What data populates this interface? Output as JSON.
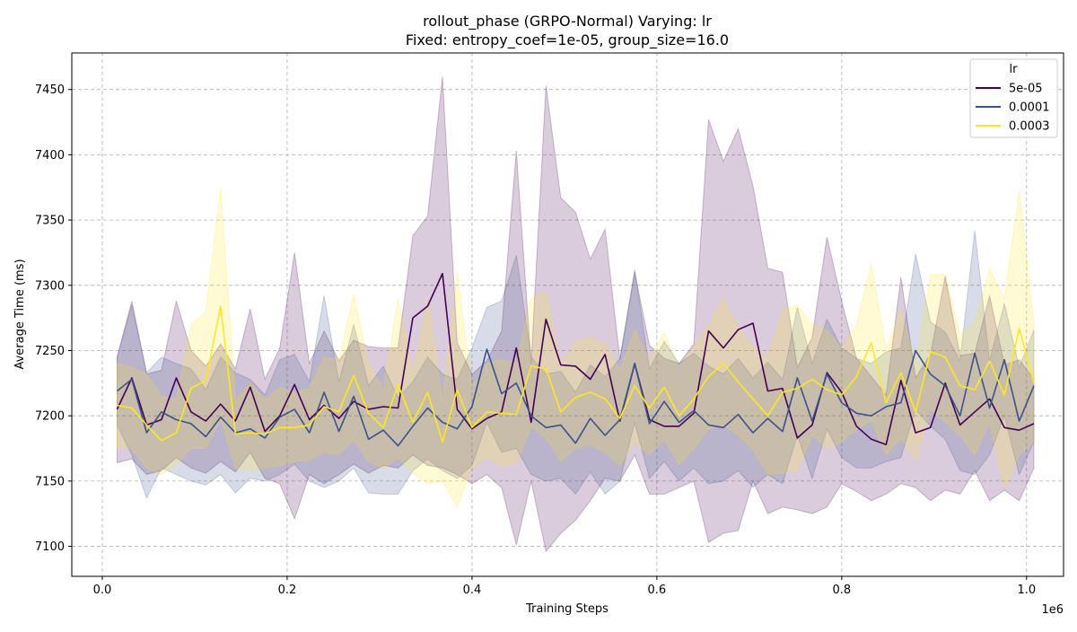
{
  "chart_data": {
    "type": "line",
    "title_line1": "rollout_phase (GRPO-Normal) Varying: lr",
    "title_line2": "Fixed: entropy_coef=1e-05, group_size=16.0",
    "xlabel": "Training Steps",
    "ylabel": "Average Time (ms)",
    "x_offset_label": "1e6",
    "x_unit": "1e6 steps",
    "xlim": [
      -0.033,
      1.04
    ],
    "ylim": [
      7077,
      7478
    ],
    "x_ticks": [
      0.0,
      0.2,
      0.4,
      0.6,
      0.8,
      1.0
    ],
    "x_tick_labels": [
      "0.0",
      "0.2",
      "0.4",
      "0.6",
      "0.8",
      "1.0"
    ],
    "y_ticks": [
      7100,
      7150,
      7200,
      7250,
      7300,
      7350,
      7400,
      7450
    ],
    "y_tick_labels": [
      "7100",
      "7150",
      "7200",
      "7250",
      "7300",
      "7350",
      "7400",
      "7450"
    ],
    "grid": true,
    "legend_title": "lr",
    "legend_position": "top-right",
    "x": [
      0.016,
      0.032,
      0.048,
      0.064,
      0.08,
      0.096,
      0.112,
      0.128,
      0.144,
      0.16,
      0.176,
      0.192,
      0.208,
      0.224,
      0.24,
      0.256,
      0.272,
      0.288,
      0.304,
      0.32,
      0.336,
      0.352,
      0.368,
      0.384,
      0.4,
      0.416,
      0.432,
      0.448,
      0.464,
      0.48,
      0.496,
      0.512,
      0.528,
      0.544,
      0.56,
      0.576,
      0.592,
      0.608,
      0.624,
      0.64,
      0.656,
      0.672,
      0.688,
      0.704,
      0.72,
      0.736,
      0.752,
      0.768,
      0.784,
      0.8,
      0.816,
      0.832,
      0.848,
      0.864,
      0.88,
      0.896,
      0.912,
      0.928,
      0.944,
      0.96,
      0.976,
      0.992,
      1.008
    ],
    "series": [
      {
        "name": "5e-05",
        "color": "#440154",
        "values": [
          7205,
          7229,
          7193,
          7197,
          7229,
          7203,
          7196,
          7209,
          7196,
          7222,
          7188,
          7200,
          7224,
          7197,
          7208,
          7198,
          7211,
          7205,
          7207,
          7206,
          7275,
          7284,
          7309,
          7205,
          7190,
          7198,
          7203,
          7252,
          7195,
          7274,
          7239,
          7238,
          7228,
          7247,
          7196,
          7240,
          7197,
          7192,
          7192,
          7202,
          7265,
          7252,
          7266,
          7271,
          7219,
          7221,
          7183,
          7193,
          7233,
          7218,
          7192,
          7182,
          7178,
          7227,
          7187,
          7191,
          7225,
          7193,
          7203,
          7213,
          7191,
          7189,
          7194
        ],
        "lower": [
          7164,
          7167,
          7155,
          7158,
          7168,
          7160,
          7156,
          7165,
          7157,
          7172,
          7152,
          7148,
          7121,
          7155,
          7148,
          7155,
          7163,
          7156,
          7162,
          7160,
          7170,
          7162,
          7160,
          7155,
          7148,
          7155,
          7145,
          7101,
          7150,
          7096,
          7110,
          7120,
          7135,
          7152,
          7150,
          7170,
          7140,
          7140,
          7145,
          7150,
          7103,
          7110,
          7112,
          7150,
          7125,
          7130,
          7128,
          7125,
          7130,
          7148,
          7142,
          7135,
          7140,
          7148,
          7145,
          7135,
          7143,
          7140,
          7158,
          7135,
          7143,
          7135,
          7160
        ],
        "upper": [
          7245,
          7288,
          7232,
          7235,
          7288,
          7250,
          7238,
          7255,
          7236,
          7282,
          7228,
          7252,
          7325,
          7240,
          7265,
          7242,
          7258,
          7253,
          7252,
          7252,
          7338,
          7353,
          7460,
          7256,
          7232,
          7242,
          7265,
          7403,
          7240,
          7453,
          7367,
          7356,
          7320,
          7343,
          7243,
          7310,
          7254,
          7244,
          7240,
          7255,
          7427,
          7395,
          7420,
          7376,
          7313,
          7310,
          7237,
          7260,
          7337,
          7288,
          7244,
          7230,
          7216,
          7306,
          7229,
          7247,
          7307,
          7246,
          7248,
          7292,
          7239,
          7243,
          7228
        ]
      },
      {
        "name": "0.0001",
        "color": "#3b528b",
        "values": [
          7219,
          7228,
          7187,
          7203,
          7197,
          7194,
          7184,
          7199,
          7187,
          7190,
          7183,
          7199,
          7205,
          7187,
          7218,
          7188,
          7215,
          7182,
          7189,
          7177,
          7192,
          7206,
          7195,
          7190,
          7207,
          7251,
          7217,
          7225,
          7200,
          7191,
          7193,
          7179,
          7198,
          7185,
          7197,
          7240,
          7194,
          7211,
          7195,
          7204,
          7193,
          7191,
          7201,
          7187,
          7198,
          7188,
          7229,
          7196,
          7232,
          7210,
          7202,
          7200,
          7207,
          7210,
          7250,
          7232,
          7223,
          7200,
          7248,
          7206,
          7243,
          7196,
          7223
        ],
        "lower": [
          7193,
          7170,
          7137,
          7160,
          7155,
          7150,
          7147,
          7155,
          7141,
          7152,
          7150,
          7155,
          7163,
          7150,
          7145,
          7150,
          7160,
          7141,
          7140,
          7140,
          7158,
          7167,
          7158,
          7152,
          7162,
          7195,
          7172,
          7175,
          7155,
          7150,
          7152,
          7140,
          7157,
          7140,
          7150,
          7195,
          7152,
          7165,
          7150,
          7160,
          7148,
          7150,
          7158,
          7145,
          7155,
          7148,
          7185,
          7152,
          7190,
          7168,
          7160,
          7160,
          7165,
          7168,
          7205,
          7192,
          7182,
          7158,
          7155,
          7170,
          7200,
          7155,
          7180
        ],
        "upper": [
          7245,
          7285,
          7233,
          7245,
          7240,
          7236,
          7220,
          7245,
          7233,
          7228,
          7216,
          7243,
          7247,
          7226,
          7292,
          7226,
          7270,
          7223,
          7238,
          7214,
          7226,
          7245,
          7232,
          7228,
          7252,
          7283,
          7288,
          7323,
          7245,
          7232,
          7234,
          7218,
          7239,
          7230,
          7244,
          7312,
          7236,
          7257,
          7240,
          7248,
          7238,
          7232,
          7244,
          7229,
          7241,
          7228,
          7283,
          7240,
          7274,
          7252,
          7244,
          7240,
          7249,
          7252,
          7324,
          7272,
          7264,
          7242,
          7342,
          7242,
          7286,
          7237,
          7266
        ]
      },
      {
        "name": "0.0003",
        "color": "#fde725",
        "values": [
          7208,
          7206,
          7193,
          7181,
          7187,
          7221,
          7227,
          7284,
          7186,
          7187,
          7186,
          7191,
          7191,
          7193,
          7207,
          7203,
          7231,
          7202,
          7191,
          7224,
          7195,
          7218,
          7180,
          7220,
          7191,
          7203,
          7202,
          7201,
          7238,
          7236,
          7203,
          7214,
          7218,
          7213,
          7198,
          7223,
          7206,
          7222,
          7200,
          7213,
          7230,
          7240,
          7226,
          7213,
          7200,
          7218,
          7221,
          7228,
          7220,
          7216,
          7230,
          7256,
          7210,
          7233,
          7203,
          7249,
          7245,
          7223,
          7220,
          7242,
          7216,
          7267,
          7225
        ],
        "lower": [
          7175,
          7175,
          7160,
          7155,
          7162,
          7175,
          7175,
          7198,
          7160,
          7158,
          7160,
          7162,
          7165,
          7166,
          7172,
          7170,
          7182,
          7165,
          7160,
          7168,
          7156,
          7148,
          7150,
          7130,
          7160,
          7168,
          7162,
          7163,
          7192,
          7183,
          7165,
          7175,
          7178,
          7172,
          7162,
          7180,
          7170,
          7182,
          7163,
          7175,
          7190,
          7193,
          7185,
          7174,
          7155,
          7156,
          7158,
          7185,
          7175,
          7180,
          7190,
          7196,
          7170,
          7183,
          7166,
          7205,
          7195,
          7185,
          7170,
          7195,
          7145,
          7170,
          7180
        ],
        "upper": [
          7240,
          7237,
          7232,
          7215,
          7213,
          7270,
          7280,
          7375,
          7212,
          7225,
          7212,
          7222,
          7218,
          7221,
          7245,
          7243,
          7293,
          7240,
          7220,
          7290,
          7232,
          7290,
          7210,
          7311,
          7222,
          7240,
          7243,
          7240,
          7290,
          7295,
          7240,
          7257,
          7260,
          7255,
          7235,
          7266,
          7243,
          7264,
          7237,
          7252,
          7270,
          7290,
          7268,
          7253,
          7245,
          7281,
          7285,
          7270,
          7265,
          7252,
          7270,
          7317,
          7251,
          7282,
          7240,
          7308,
          7308,
          7262,
          7272,
          7313,
          7290,
          7372,
          7270
        ]
      }
    ]
  }
}
